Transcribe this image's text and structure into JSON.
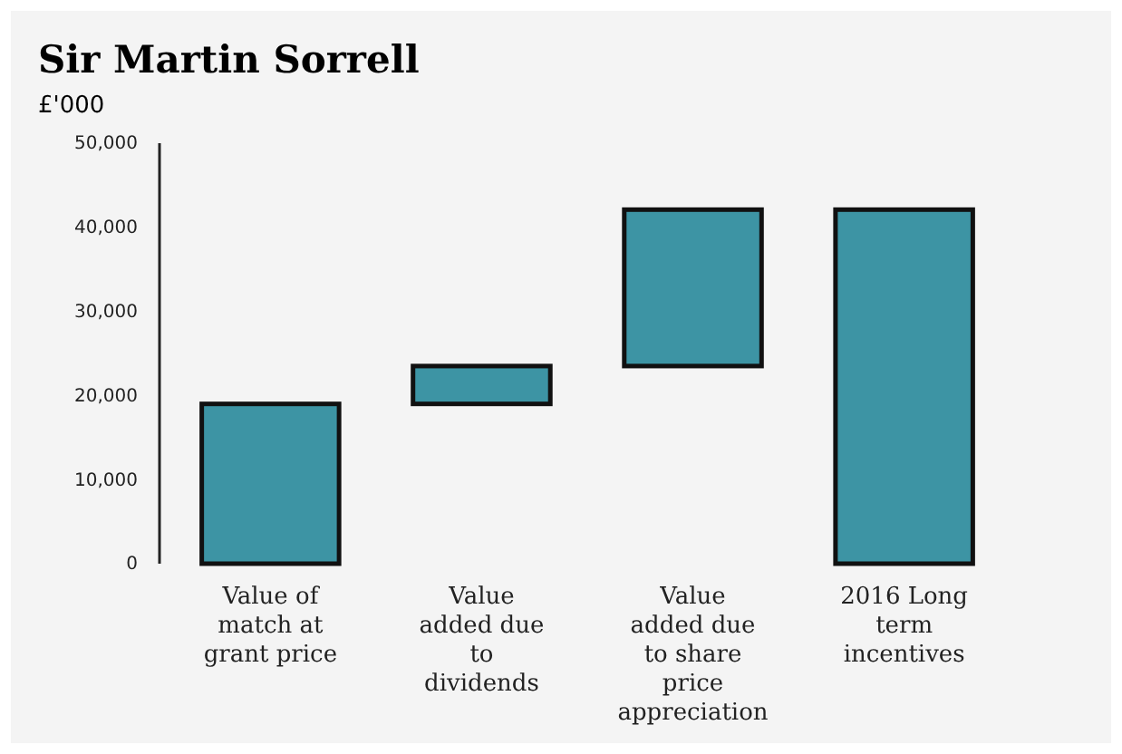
{
  "chart_data": {
    "type": "bar",
    "title": "Sir Martin Sorrell",
    "ylabel": "£'000",
    "categories": [
      "Value of match at grant price",
      "Value added due to dividends",
      "Value added due to share price appreciation",
      "2016 Long term incentives"
    ],
    "values": [
      19000,
      4500,
      18600,
      42100
    ],
    "base": [
      0,
      19000,
      23500,
      0
    ],
    "color": "#3d94a4",
    "ylim": [
      0,
      50000
    ],
    "yticks": [
      {
        "value": 0,
        "label": "0"
      },
      {
        "value": 10000,
        "label": "10,000"
      },
      {
        "value": 20000,
        "label": "20,000"
      },
      {
        "value": 30000,
        "label": "30,000"
      },
      {
        "value": 40000,
        "label": "40,000"
      },
      {
        "value": 50000,
        "label": "50,000"
      }
    ],
    "grid": false
  }
}
